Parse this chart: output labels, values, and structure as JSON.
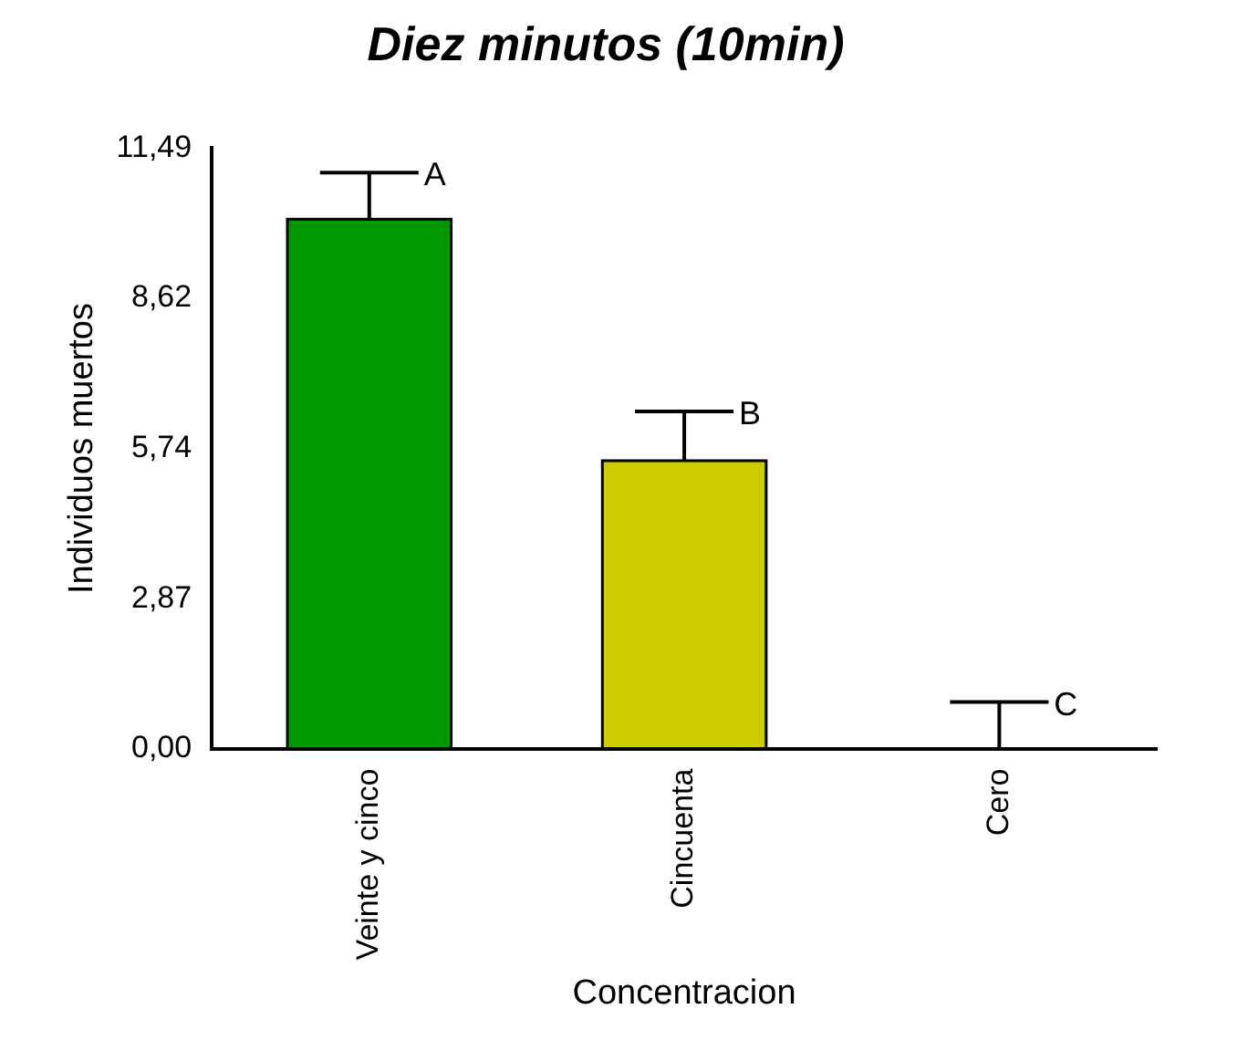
{
  "chart_data": {
    "type": "bar",
    "title": "Diez minutos (10min)",
    "xlabel": "Concentracion",
    "ylabel": "Individuos muertos",
    "categories": [
      "Veinte y cinco",
      "Cincuenta",
      "Cero"
    ],
    "values": [
      10.13,
      5.51,
      0
    ],
    "colors": [
      "#009900",
      "#cccc00",
      "#888888"
    ],
    "errors": [
      [
        10.13,
        11.02
      ],
      [
        5.51,
        6.45
      ],
      [
        0,
        0.89
      ]
    ],
    "ylim": [
      0,
      11.49
    ],
    "yticks": [
      {
        "value": 0,
        "label": "0,00"
      },
      {
        "value": 2.87,
        "label": "2,87"
      },
      {
        "value": 5.74,
        "label": "5,74"
      },
      {
        "value": 8.62,
        "label": "8,62"
      },
      {
        "value": 11.49,
        "label": "11,49"
      }
    ],
    "annotations": [
      "A",
      "B",
      "C"
    ],
    "grid": false,
    "legend": false
  }
}
